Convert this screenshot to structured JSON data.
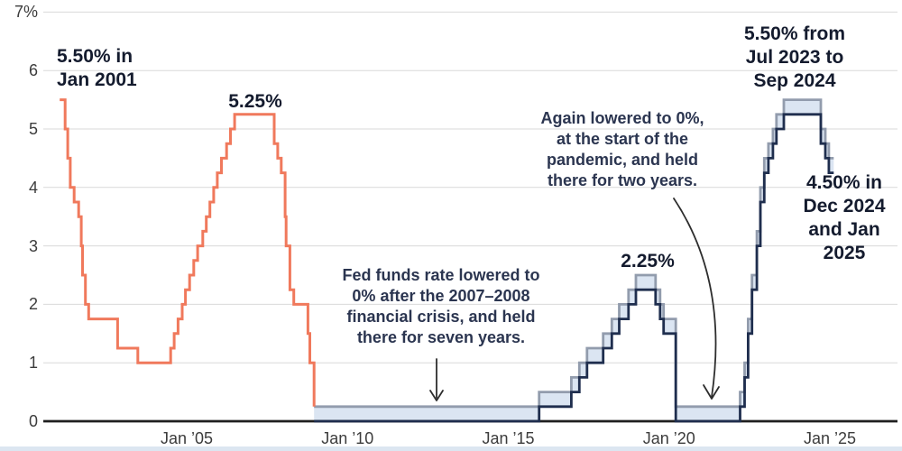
{
  "colors": {
    "salmon_line": "#f0795c",
    "range_fill": "#dbe5f2",
    "range_upper_line": "#929cad",
    "range_lower_line": "#1f2e4e",
    "gridline": "#d9d9d9",
    "axis": "#1f1f1f",
    "tick_text": "#3c3c3c",
    "annotation_bold_text": "#141b2e",
    "annotation_text": "#2b3550",
    "arrow": "#2d2d2d",
    "bottom_strip": "#dce6f1"
  },
  "annotations": {
    "peak_2001": "5.50% in\nJan 2001",
    "peak_2006": "5.25%",
    "financial_crisis": "Fed funds rate lowered to\n0% after the 2007–2008\nfinancial crisis, and held\nthere for seven years.",
    "peak_2019": "2.25%",
    "pandemic": "Again lowered to 0%,\nat the start of the\npandemic, and held\nthere for two years.",
    "peak_2023": "5.50% from\nJul 2023 to\nSep 2024",
    "current_2025": "4.50% in\nDec 2024\nand Jan\n2025"
  },
  "chart_data": {
    "type": "line",
    "ylim": [
      0,
      7
    ],
    "xlim": [
      2000.5,
      2027.1
    ],
    "grid": "horizontal",
    "unit": "%",
    "yticks": [
      {
        "label": "7%",
        "value": 7
      },
      {
        "label": "6",
        "value": 6
      },
      {
        "label": "5",
        "value": 5
      },
      {
        "label": "4",
        "value": 4
      },
      {
        "label": "3",
        "value": 3
      },
      {
        "label": "2",
        "value": 2
      },
      {
        "label": "1",
        "value": 1
      },
      {
        "label": "0",
        "value": 0
      }
    ],
    "xticks": [
      {
        "label": "Jan ’05",
        "value": 2005
      },
      {
        "label": "Jan ’10",
        "value": 2010
      },
      {
        "label": "Jan ’15",
        "value": 2015
      },
      {
        "label": "Jan ’20",
        "value": 2020
      },
      {
        "label": "Jan ’25",
        "value": 2025
      }
    ],
    "series": [
      {
        "name": "fed-funds-target-rate",
        "type": "step",
        "points": [
          [
            2001.05,
            5.5
          ],
          [
            2001.22,
            5.0
          ],
          [
            2001.3,
            4.5
          ],
          [
            2001.38,
            4.0
          ],
          [
            2001.5,
            3.75
          ],
          [
            2001.64,
            3.5
          ],
          [
            2001.72,
            3.0
          ],
          [
            2001.76,
            2.5
          ],
          [
            2001.85,
            2.0
          ],
          [
            2001.95,
            1.75
          ],
          [
            2002.85,
            1.25
          ],
          [
            2003.48,
            1.0
          ],
          [
            2004.5,
            1.25
          ],
          [
            2004.61,
            1.5
          ],
          [
            2004.73,
            1.75
          ],
          [
            2004.86,
            2.0
          ],
          [
            2004.96,
            2.25
          ],
          [
            2005.09,
            2.5
          ],
          [
            2005.22,
            2.75
          ],
          [
            2005.34,
            3.0
          ],
          [
            2005.5,
            3.25
          ],
          [
            2005.61,
            3.5
          ],
          [
            2005.72,
            3.75
          ],
          [
            2005.84,
            4.0
          ],
          [
            2005.95,
            4.25
          ],
          [
            2006.08,
            4.5
          ],
          [
            2006.24,
            4.75
          ],
          [
            2006.36,
            5.0
          ],
          [
            2006.49,
            5.25
          ],
          [
            2007.72,
            4.75
          ],
          [
            2007.83,
            4.5
          ],
          [
            2007.94,
            4.25
          ],
          [
            2008.06,
            3.5
          ],
          [
            2008.09,
            3.0
          ],
          [
            2008.21,
            2.25
          ],
          [
            2008.33,
            2.0
          ],
          [
            2008.77,
            1.5
          ],
          [
            2008.83,
            1.0
          ],
          [
            2008.96,
            0.25
          ]
        ]
      },
      {
        "name": "fed-funds-target-range",
        "type": "step-band",
        "end_x": 2025.12,
        "points": [
          [
            2008.96,
            0,
            0.25
          ],
          [
            2015.96,
            0.25,
            0.5
          ],
          [
            2016.96,
            0.5,
            0.75
          ],
          [
            2017.21,
            0.75,
            1.0
          ],
          [
            2017.45,
            1.0,
            1.25
          ],
          [
            2017.95,
            1.25,
            1.5
          ],
          [
            2018.22,
            1.5,
            1.75
          ],
          [
            2018.45,
            1.75,
            2.0
          ],
          [
            2018.74,
            2.0,
            2.25
          ],
          [
            2018.97,
            2.25,
            2.5
          ],
          [
            2019.58,
            2.0,
            2.25
          ],
          [
            2019.72,
            1.75,
            2.0
          ],
          [
            2019.83,
            1.5,
            1.75
          ],
          [
            2020.21,
            0,
            0.25
          ],
          [
            2022.21,
            0.25,
            0.5
          ],
          [
            2022.35,
            0.75,
            1.0
          ],
          [
            2022.46,
            1.5,
            1.75
          ],
          [
            2022.58,
            2.25,
            2.5
          ],
          [
            2022.73,
            3.0,
            3.25
          ],
          [
            2022.84,
            3.75,
            4.0
          ],
          [
            2022.96,
            4.25,
            4.5
          ],
          [
            2023.09,
            4.5,
            4.75
          ],
          [
            2023.23,
            4.75,
            5.0
          ],
          [
            2023.34,
            5.0,
            5.25
          ],
          [
            2023.57,
            5.25,
            5.5
          ],
          [
            2024.72,
            4.75,
            5.0
          ],
          [
            2024.86,
            4.5,
            4.75
          ],
          [
            2024.97,
            4.25,
            4.5
          ]
        ]
      }
    ]
  }
}
